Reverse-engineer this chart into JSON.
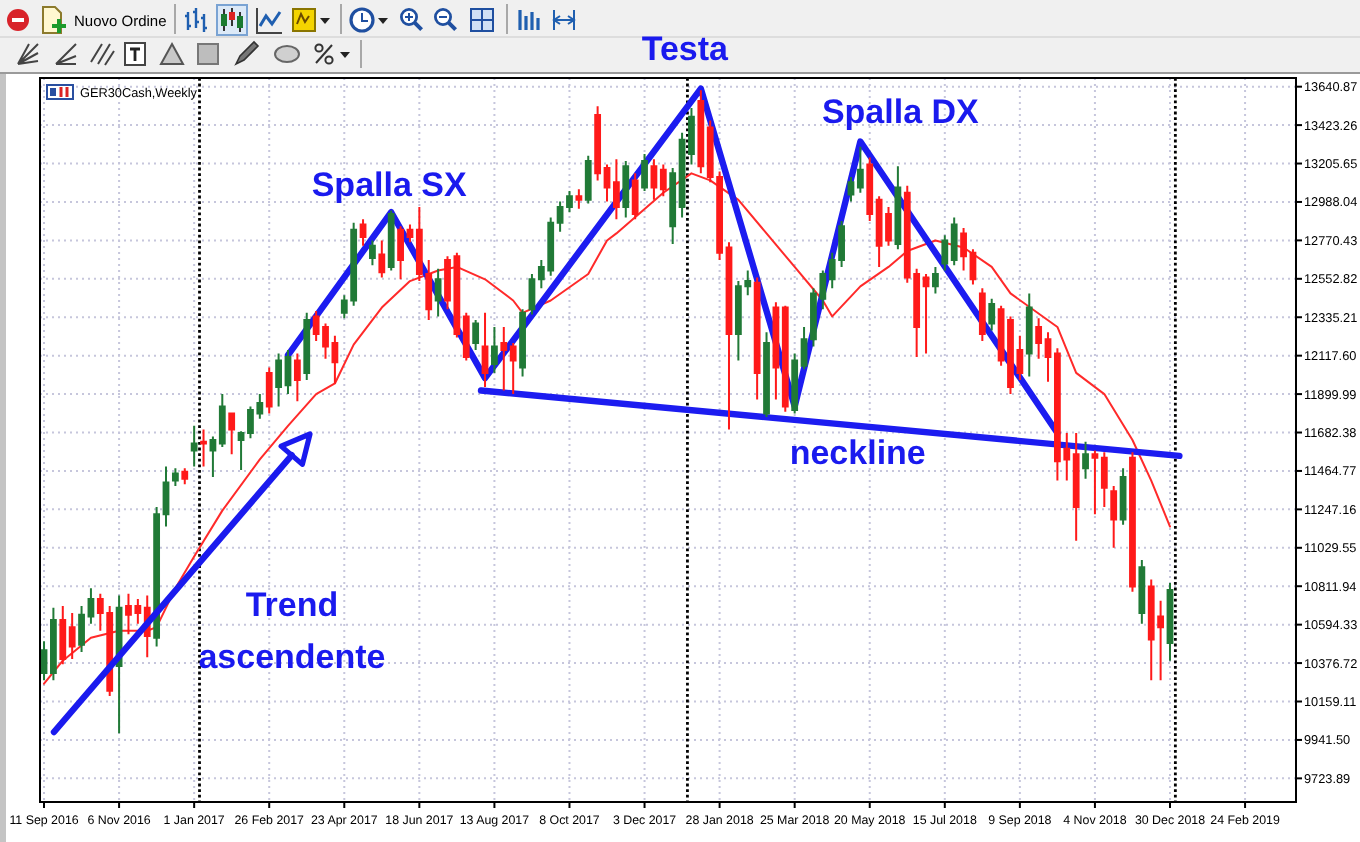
{
  "chart_data": {
    "type": "candlestick",
    "title": "GER30Cash,Weekly",
    "x": [
      "2016-09-11",
      "2016-09-18",
      "2016-09-25",
      "2016-10-02",
      "2016-10-09",
      "2016-10-16",
      "2016-10-23",
      "2016-10-30",
      "2016-11-06",
      "2016-11-13",
      "2016-11-20",
      "2016-11-27",
      "2016-12-04",
      "2016-12-11",
      "2016-12-18",
      "2016-12-25",
      "2017-01-01",
      "2017-01-08",
      "2017-01-15",
      "2017-01-22",
      "2017-01-29",
      "2017-02-05",
      "2017-02-12",
      "2017-02-19",
      "2017-02-26",
      "2017-03-05",
      "2017-03-12",
      "2017-03-19",
      "2017-03-26",
      "2017-04-02",
      "2017-04-09",
      "2017-04-16",
      "2017-04-23",
      "2017-04-30",
      "2017-05-07",
      "2017-05-14",
      "2017-05-21",
      "2017-05-28",
      "2017-06-04",
      "2017-06-11",
      "2017-06-18",
      "2017-06-25",
      "2017-07-02",
      "2017-07-09",
      "2017-07-16",
      "2017-07-23",
      "2017-07-30",
      "2017-08-06",
      "2017-08-13",
      "2017-08-20",
      "2017-08-27",
      "2017-09-03",
      "2017-09-10",
      "2017-09-17",
      "2017-09-24",
      "2017-10-01",
      "2017-10-08",
      "2017-10-15",
      "2017-10-22",
      "2017-10-29",
      "2017-11-05",
      "2017-11-12",
      "2017-11-19",
      "2017-11-26",
      "2017-12-03",
      "2017-12-10",
      "2017-12-17",
      "2017-12-24",
      "2017-12-31",
      "2018-01-07",
      "2018-01-14",
      "2018-01-21",
      "2018-01-28",
      "2018-02-04",
      "2018-02-11",
      "2018-02-18",
      "2018-02-25",
      "2018-03-04",
      "2018-03-11",
      "2018-03-18",
      "2018-03-25",
      "2018-04-01",
      "2018-04-08",
      "2018-04-15",
      "2018-04-22",
      "2018-04-29",
      "2018-05-06",
      "2018-05-13",
      "2018-05-20",
      "2018-05-27",
      "2018-06-03",
      "2018-06-10",
      "2018-06-17",
      "2018-06-24",
      "2018-07-01",
      "2018-07-08",
      "2018-07-15",
      "2018-07-22",
      "2018-07-29",
      "2018-08-05",
      "2018-08-12",
      "2018-08-19",
      "2018-08-26",
      "2018-09-02",
      "2018-09-09",
      "2018-09-16",
      "2018-09-23",
      "2018-09-30",
      "2018-10-07",
      "2018-10-14",
      "2018-10-21",
      "2018-10-28",
      "2018-11-04",
      "2018-11-11",
      "2018-11-18",
      "2018-11-25",
      "2018-12-02",
      "2018-12-09",
      "2018-12-16",
      "2018-12-23",
      "2018-12-30"
    ],
    "ohlc": [
      [
        10320,
        10500,
        10280,
        10450
      ],
      [
        10320,
        10690,
        10280,
        10620
      ],
      [
        10620,
        10700,
        10370,
        10400
      ],
      [
        10580,
        10660,
        10400,
        10470
      ],
      [
        10480,
        10700,
        10440,
        10650
      ],
      [
        10640,
        10800,
        10600,
        10740
      ],
      [
        10740,
        10770,
        10560,
        10660
      ],
      [
        10660,
        10700,
        10190,
        10220
      ],
      [
        10360,
        10760,
        9980,
        10690
      ],
      [
        10700,
        10770,
        10540,
        10650
      ],
      [
        10700,
        10740,
        10600,
        10660
      ],
      [
        10690,
        10760,
        10410,
        10530
      ],
      [
        10520,
        11260,
        10470,
        11220
      ],
      [
        11220,
        11490,
        11150,
        11400
      ],
      [
        11410,
        11480,
        11380,
        11450
      ],
      [
        11460,
        11480,
        11390,
        11420
      ],
      [
        11580,
        11720,
        11490,
        11620
      ],
      [
        11630,
        11700,
        11490,
        11620
      ],
      [
        11580,
        11660,
        11430,
        11640
      ],
      [
        11620,
        11900,
        11600,
        11830
      ],
      [
        11790,
        11790,
        11560,
        11700
      ],
      [
        11640,
        11690,
        11470,
        11680
      ],
      [
        11680,
        11830,
        11650,
        11810
      ],
      [
        11790,
        11900,
        11760,
        11850
      ],
      [
        12020,
        12050,
        11790,
        11830
      ],
      [
        11940,
        12130,
        11830,
        12090
      ],
      [
        11950,
        12150,
        11900,
        12110
      ],
      [
        12090,
        12130,
        11860,
        11980
      ],
      [
        12020,
        12360,
        11980,
        12320
      ],
      [
        12340,
        12370,
        12200,
        12240
      ],
      [
        12280,
        12300,
        12100,
        12170
      ],
      [
        12190,
        12230,
        11960,
        12080
      ],
      [
        12360,
        12460,
        12330,
        12430
      ],
      [
        12430,
        12870,
        12400,
        12830
      ],
      [
        12860,
        12890,
        12740,
        12790
      ],
      [
        12670,
        12770,
        12630,
        12740
      ],
      [
        12690,
        12770,
        12560,
        12590
      ],
      [
        12620,
        12940,
        12600,
        12920
      ],
      [
        12830,
        12850,
        12550,
        12660
      ],
      [
        12830,
        12860,
        12760,
        12790
      ],
      [
        12830,
        12960,
        12540,
        12580
      ],
      [
        12580,
        12660,
        12320,
        12380
      ],
      [
        12430,
        12610,
        12340,
        12550
      ],
      [
        12660,
        12680,
        12380,
        12430
      ],
      [
        12680,
        12700,
        12220,
        12240
      ],
      [
        12340,
        12360,
        12090,
        12110
      ],
      [
        12190,
        12320,
        12150,
        12300
      ],
      [
        12170,
        12360,
        11940,
        12020
      ],
      [
        12070,
        12280,
        12020,
        12170
      ],
      [
        12190,
        12280,
        11920,
        12150
      ],
      [
        12170,
        12190,
        11900,
        12090
      ],
      [
        12050,
        12380,
        12000,
        12360
      ],
      [
        12380,
        12580,
        12350,
        12550
      ],
      [
        12550,
        12660,
        12500,
        12620
      ],
      [
        12600,
        12900,
        12570,
        12870
      ],
      [
        12870,
        12990,
        12820,
        12960
      ],
      [
        12960,
        13050,
        12930,
        13020
      ],
      [
        13020,
        13060,
        12950,
        13000
      ],
      [
        13000,
        13250,
        12980,
        13220
      ],
      [
        13480,
        13530,
        13110,
        13150
      ],
      [
        13180,
        13200,
        12990,
        13070
      ],
      [
        13100,
        13230,
        12890,
        12960
      ],
      [
        12960,
        13220,
        12900,
        13190
      ],
      [
        13110,
        13150,
        12890,
        12920
      ],
      [
        13070,
        13260,
        13050,
        13220
      ],
      [
        13190,
        13230,
        13000,
        13070
      ],
      [
        13170,
        13200,
        13020,
        13060
      ],
      [
        12850,
        13180,
        12750,
        13150
      ],
      [
        12960,
        13380,
        12900,
        13340
      ],
      [
        13260,
        13520,
        13200,
        13470
      ],
      [
        13560,
        13620,
        13150,
        13190
      ],
      [
        13410,
        13450,
        13100,
        13130
      ],
      [
        13130,
        13160,
        12660,
        12700
      ],
      [
        12730,
        12760,
        11700,
        12240
      ],
      [
        12240,
        12540,
        12090,
        12510
      ],
      [
        12510,
        12600,
        12460,
        12540
      ],
      [
        12530,
        12560,
        11870,
        12020
      ],
      [
        11790,
        12250,
        11770,
        12190
      ],
      [
        12390,
        12420,
        11870,
        12050
      ],
      [
        12390,
        12400,
        11800,
        11830
      ],
      [
        11810,
        12130,
        11790,
        12090
      ],
      [
        12060,
        12280,
        12040,
        12210
      ],
      [
        12210,
        12500,
        12170,
        12470
      ],
      [
        12440,
        12600,
        12380,
        12580
      ],
      [
        12550,
        12700,
        12500,
        12660
      ],
      [
        12660,
        12880,
        12620,
        12850
      ],
      [
        13030,
        13130,
        12990,
        13100
      ],
      [
        13070,
        13300,
        13040,
        13170
      ],
      [
        13200,
        13240,
        12880,
        12920
      ],
      [
        13000,
        13020,
        12620,
        12740
      ],
      [
        12920,
        12960,
        12740,
        12770
      ],
      [
        12750,
        13190,
        12720,
        13070
      ],
      [
        13040,
        13080,
        12530,
        12560
      ],
      [
        12580,
        12610,
        12110,
        12280
      ],
      [
        12560,
        12580,
        12130,
        12510
      ],
      [
        12510,
        12620,
        12470,
        12580
      ],
      [
        12640,
        12800,
        12600,
        12770
      ],
      [
        12660,
        12900,
        12630,
        12860
      ],
      [
        12810,
        12840,
        12600,
        12680
      ],
      [
        12700,
        12720,
        12520,
        12550
      ],
      [
        12470,
        12500,
        12200,
        12240
      ],
      [
        12300,
        12440,
        12260,
        12410
      ],
      [
        12380,
        12400,
        12060,
        12090
      ],
      [
        12320,
        12340,
        11900,
        11940
      ],
      [
        12150,
        12230,
        11980,
        12020
      ],
      [
        12130,
        12470,
        12000,
        12390
      ],
      [
        12280,
        12330,
        12100,
        12190
      ],
      [
        12210,
        12250,
        11970,
        12110
      ],
      [
        12130,
        12160,
        11410,
        11520
      ],
      [
        11590,
        11680,
        11410,
        11530
      ],
      [
        11560,
        11680,
        11070,
        11260
      ],
      [
        11480,
        11630,
        11420,
        11560
      ],
      [
        11560,
        11580,
        11220,
        11540
      ],
      [
        11540,
        11570,
        11260,
        11370
      ],
      [
        11350,
        11380,
        11030,
        11190
      ],
      [
        11190,
        11480,
        11160,
        11430
      ],
      [
        11540,
        11570,
        10780,
        10810
      ],
      [
        10660,
        10960,
        10600,
        10920
      ],
      [
        10810,
        10850,
        10280,
        10510
      ],
      [
        10640,
        10730,
        10280,
        10580
      ],
      [
        10490,
        10830,
        10390,
        10790
      ]
    ],
    "colors": [
      "#217a37",
      "#217a37",
      "#ff1a1a",
      "#ff1a1a",
      "#217a37",
      "#217a37",
      "#ff1a1a",
      "#ff1a1a",
      "#217a37",
      "#ff1a1a",
      "#ff1a1a",
      "#ff1a1a",
      "#217a37",
      "#217a37",
      "#217a37",
      "#ff1a1a",
      "#217a37",
      "#ff1a1a",
      "#217a37",
      "#217a37",
      "#ff1a1a",
      "#217a37",
      "#217a37",
      "#217a37",
      "#ff1a1a",
      "#217a37",
      "#217a37",
      "#ff1a1a",
      "#217a37",
      "#ff1a1a",
      "#ff1a1a",
      "#ff1a1a",
      "#217a37",
      "#217a37",
      "#ff1a1a",
      "#217a37",
      "#ff1a1a",
      "#217a37",
      "#ff1a1a",
      "#ff1a1a",
      "#ff1a1a",
      "#ff1a1a",
      "#217a37",
      "#ff1a1a",
      "#ff1a1a",
      "#ff1a1a",
      "#217a37",
      "#ff1a1a",
      "#217a37",
      "#ff1a1a",
      "#ff1a1a",
      "#217a37",
      "#217a37",
      "#217a37",
      "#217a37",
      "#217a37",
      "#217a37",
      "#ff1a1a",
      "#217a37",
      "#ff1a1a",
      "#ff1a1a",
      "#ff1a1a",
      "#217a37",
      "#ff1a1a",
      "#217a37",
      "#ff1a1a",
      "#ff1a1a",
      "#217a37",
      "#217a37",
      "#217a37",
      "#ff1a1a",
      "#ff1a1a",
      "#ff1a1a",
      "#ff1a1a",
      "#217a37",
      "#217a37",
      "#ff1a1a",
      "#217a37",
      "#ff1a1a",
      "#ff1a1a",
      "#217a37",
      "#217a37",
      "#217a37",
      "#217a37",
      "#217a37",
      "#217a37",
      "#217a37",
      "#217a37",
      "#ff1a1a",
      "#ff1a1a",
      "#ff1a1a",
      "#217a37",
      "#ff1a1a",
      "#ff1a1a",
      "#ff1a1a",
      "#217a37",
      "#217a37",
      "#217a37",
      "#ff1a1a",
      "#ff1a1a",
      "#ff1a1a",
      "#217a37",
      "#ff1a1a",
      "#ff1a1a",
      "#ff1a1a",
      "#217a37",
      "#ff1a1a",
      "#ff1a1a",
      "#ff1a1a",
      "#ff1a1a",
      "#ff1a1a",
      "#217a37",
      "#ff1a1a",
      "#ff1a1a",
      "#ff1a1a",
      "#217a37",
      "#ff1a1a",
      "#217a37",
      "#ff1a1a",
      "#ff1a1a",
      "#217a37"
    ],
    "series": [
      {
        "type": "line",
        "color": "#ff2a2a",
        "x": [
          "2016-09-11",
          "2016-09-25",
          "2016-10-16",
          "2016-11-06",
          "2016-11-27",
          "2016-12-04",
          "2016-12-18",
          "2017-01-01",
          "2017-01-22",
          "2017-02-19",
          "2017-03-12",
          "2017-04-02",
          "2017-04-16",
          "2017-04-30",
          "2017-05-21",
          "2017-06-11",
          "2017-07-02",
          "2017-07-16",
          "2017-08-06",
          "2017-08-27",
          "2017-09-03",
          "2017-09-24",
          "2017-10-22",
          "2017-11-05",
          "2017-11-12",
          "2017-12-17",
          "2018-01-07",
          "2018-01-21",
          "2018-02-11",
          "2018-03-04",
          "2018-03-25",
          "2018-04-15",
          "2018-04-22",
          "2018-05-13",
          "2018-06-03",
          "2018-06-17",
          "2018-07-08",
          "2018-07-29",
          "2018-08-19",
          "2018-09-02",
          "2018-10-07",
          "2018-10-21",
          "2018-11-11",
          "2018-12-02",
          "2018-12-16",
          "2018-12-30"
        ],
        "values": [
          10260,
          10390,
          10520,
          10560,
          10560,
          10580,
          10800,
          10980,
          11240,
          11530,
          11720,
          11900,
          11960,
          12180,
          12390,
          12540,
          12600,
          12620,
          12550,
          12430,
          12360,
          12430,
          12580,
          12770,
          12810,
          13040,
          13150,
          13110,
          13000,
          12810,
          12620,
          12430,
          12340,
          12510,
          12620,
          12710,
          12770,
          12730,
          12620,
          12470,
          12280,
          12020,
          11900,
          11640,
          11410,
          11150
        ]
      },
      {
        "type": "line",
        "color": "#1c1cf0",
        "x": [
          "2017-03-12",
          "2017-05-28",
          "2017-08-06",
          "2018-01-14",
          "2018-03-25",
          "2018-05-13",
          "2018-10-07"
        ],
        "values": [
          12120,
          12930,
          11990,
          13630,
          11830,
          13330,
          11680
        ]
      },
      {
        "type": "line",
        "color": "#1c1cf0",
        "x": [
          "2017-08-03",
          "2019-01-06"
        ],
        "values": [
          11920,
          11550
        ]
      }
    ],
    "xlim": [
      "2016-09-08",
      "2019-04-03"
    ],
    "xticks": [
      {
        "value": "2016-09-11",
        "label": "11 Sep 2016"
      },
      {
        "value": "2016-11-06",
        "label": "6 Nov 2016"
      },
      {
        "value": "2017-01-01",
        "label": "1 Jan 2017"
      },
      {
        "value": "2017-02-26",
        "label": "26 Feb 2017"
      },
      {
        "value": "2017-04-23",
        "label": "23 Apr 2017"
      },
      {
        "value": "2017-06-18",
        "label": "18 Jun 2017"
      },
      {
        "value": "2017-08-13",
        "label": "13 Aug 2017"
      },
      {
        "value": "2017-10-08",
        "label": "8 Oct 2017"
      },
      {
        "value": "2017-12-03",
        "label": "3 Dec 2017"
      },
      {
        "value": "2018-01-28",
        "label": "28 Jan 2018"
      },
      {
        "value": "2018-03-25",
        "label": "25 Mar 2018"
      },
      {
        "value": "2018-05-20",
        "label": "20 May 2018"
      },
      {
        "value": "2018-07-15",
        "label": "15 Jul 2018"
      },
      {
        "value": "2018-09-09",
        "label": "9 Sep 2018"
      },
      {
        "value": "2018-11-04",
        "label": "4 Nov 2018"
      },
      {
        "value": "2018-12-30",
        "label": "30 Dec 2018"
      },
      {
        "value": "2019-02-24",
        "label": "24 Feb 2019"
      }
    ],
    "ylim": [
      9590,
      13690
    ],
    "yticks": [
      9723.89,
      {
        "value": 9941.5,
        "label": "9941.50"
      },
      10159.11,
      10376.72,
      10594.33,
      10811.94,
      11029.55,
      11247.16,
      11464.77,
      11682.38,
      11899.99,
      {
        "value": 12117.6,
        "label": "12117.60"
      },
      12335.21,
      12552.82,
      12770.43,
      12988.04,
      13205.65,
      13423.26,
      13640.87
    ],
    "grid": true,
    "ref_lines": [
      {
        "axis": "x",
        "value": "2017-01-05",
        "color": "#000000",
        "line_style": "dotted"
      },
      {
        "axis": "x",
        "value": "2018-01-04",
        "color": "#000000",
        "line_style": "dotted"
      },
      {
        "axis": "x",
        "value": "2019-01-03",
        "color": "#000000",
        "line_style": "dotted"
      }
    ],
    "annotations": [
      {
        "text": "Testa",
        "x": "2018-01-14",
        "y": 13630
      },
      {
        "text": "Spalla SX",
        "x": "2017-05-28",
        "y": 12930
      },
      {
        "text": "Spalla DX",
        "x": "2018-05-13",
        "y": 13330
      },
      {
        "text": "neckline",
        "x": "2018-05-20",
        "y": 11720
      },
      "Trend ascendente",
      "Nuovo Ordine"
    ]
  }
}
